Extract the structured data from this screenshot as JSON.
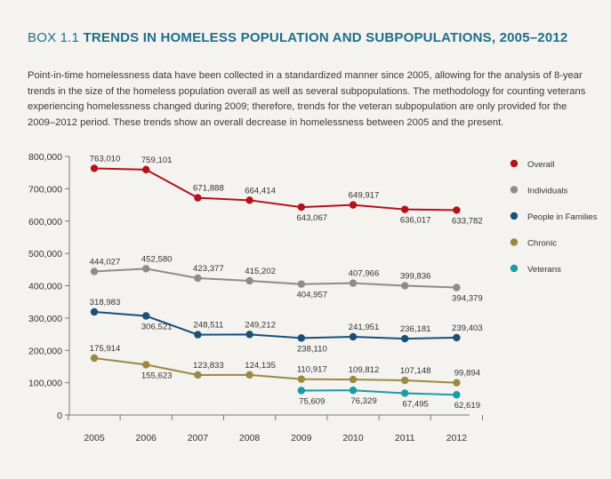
{
  "header": {
    "tag": "BOX 1.1",
    "title": "TRENDS IN HOMELESS POPULATION AND SUBPOPULATIONS, 2005–2012"
  },
  "intro": "Point-in-time homelessness data have been collected in a standardized manner since 2005, allowing for the analysis of 8-year trends in the size of the homeless population overall as well as several subpopulations. The methodology for counting veterans experiencing homelessness changed during 2009; therefore, trends for the veteran subpopulation are only provided for the 2009–2012 period. These trends show an overall decrease in homelessness between 2005 and the present.",
  "chart_data": {
    "type": "line",
    "title": "",
    "xlabel": "",
    "ylabel": "",
    "x": [
      "2005",
      "2006",
      "2007",
      "2008",
      "2009",
      "2010",
      "2011",
      "2012"
    ],
    "ylim": [
      0,
      800000
    ],
    "yticks": [
      0,
      100000,
      200000,
      300000,
      400000,
      500000,
      600000,
      700000,
      800000
    ],
    "ytick_labels": [
      "0",
      "100,000",
      "200,000",
      "300,000",
      "400,000",
      "500,000",
      "600,000",
      "700,000",
      "800,000"
    ],
    "grid": false,
    "legend_position": "right",
    "series": [
      {
        "name": "Overall",
        "color": "#b5121b",
        "values": [
          763010,
          759101,
          671888,
          664414,
          643067,
          649917,
          636017,
          633782
        ],
        "labels": [
          "763,010",
          "759,101",
          "671,888",
          "664,414",
          "643,067",
          "649,917",
          "636,017",
          "633,782"
        ]
      },
      {
        "name": "Individuals",
        "color": "#8c8c8c",
        "values": [
          444027,
          452580,
          423377,
          415202,
          404957,
          407966,
          399836,
          394379
        ],
        "labels": [
          "444,027",
          "452,580",
          "423,377",
          "415,202",
          "404,957",
          "407,966",
          "399,836",
          "394,379"
        ]
      },
      {
        "name": "People in Families",
        "color": "#1b4f7a",
        "values": [
          318983,
          306521,
          248511,
          249212,
          238110,
          241951,
          236181,
          239403
        ],
        "labels": [
          "318,983",
          "306,521",
          "248,511",
          "249,212",
          "238,110",
          "241,951",
          "236,181",
          "239,403"
        ]
      },
      {
        "name": "Chronic",
        "color": "#9c8842",
        "values": [
          175914,
          155623,
          123833,
          124135,
          110917,
          109812,
          107148,
          99894
        ],
        "labels": [
          "175,914",
          "155,623",
          "123,833",
          "124,135",
          "110,917",
          "109,812",
          "107,148",
          "99,894"
        ]
      },
      {
        "name": "Veterans",
        "color": "#1a9ba8",
        "values": [
          null,
          null,
          null,
          null,
          75609,
          76329,
          67495,
          62619
        ],
        "labels": [
          "",
          "",
          "",
          "",
          "75,609",
          "76,329",
          "67,495",
          "62,619"
        ]
      }
    ]
  }
}
